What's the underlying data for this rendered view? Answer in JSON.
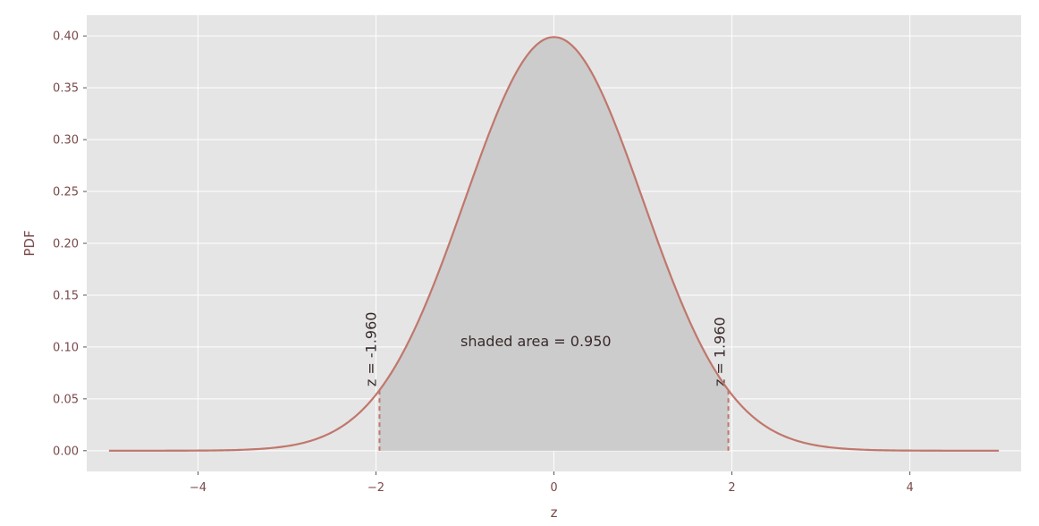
{
  "chart_data": {
    "type": "area",
    "title": "",
    "xlabel": "z",
    "ylabel": "PDF",
    "xlim": [
      -5.25,
      5.25
    ],
    "ylim": [
      -0.02,
      0.42
    ],
    "x_ticks": [
      -4,
      -2,
      0,
      2,
      4
    ],
    "x_tick_labels": [
      "−4",
      "−2",
      "0",
      "2",
      "4"
    ],
    "y_ticks": [
      0.0,
      0.05,
      0.1,
      0.15,
      0.2,
      0.25,
      0.3,
      0.35,
      0.4
    ],
    "y_tick_labels": [
      "0.00",
      "0.05",
      "0.10",
      "0.15",
      "0.20",
      "0.25",
      "0.30",
      "0.35",
      "0.40"
    ],
    "grid": true,
    "curve": {
      "distribution": "standard normal",
      "x_range": [
        -5,
        5
      ],
      "color": "#c0776c"
    },
    "shaded_region": {
      "x_from": -1.96,
      "x_to": 1.96,
      "color": "#cccccc"
    },
    "markers": [
      {
        "x": -1.96,
        "label": "z = -1.960"
      },
      {
        "x": 1.96,
        "label": "z = 1.960"
      }
    ],
    "annotation": {
      "text": "shaded area = 0.950",
      "x": -1.05,
      "y": 0.101
    },
    "colors": {
      "plot_background": "#e5e5e5",
      "grid": "#ffffff",
      "tick_text": "#7a4a4a"
    }
  }
}
